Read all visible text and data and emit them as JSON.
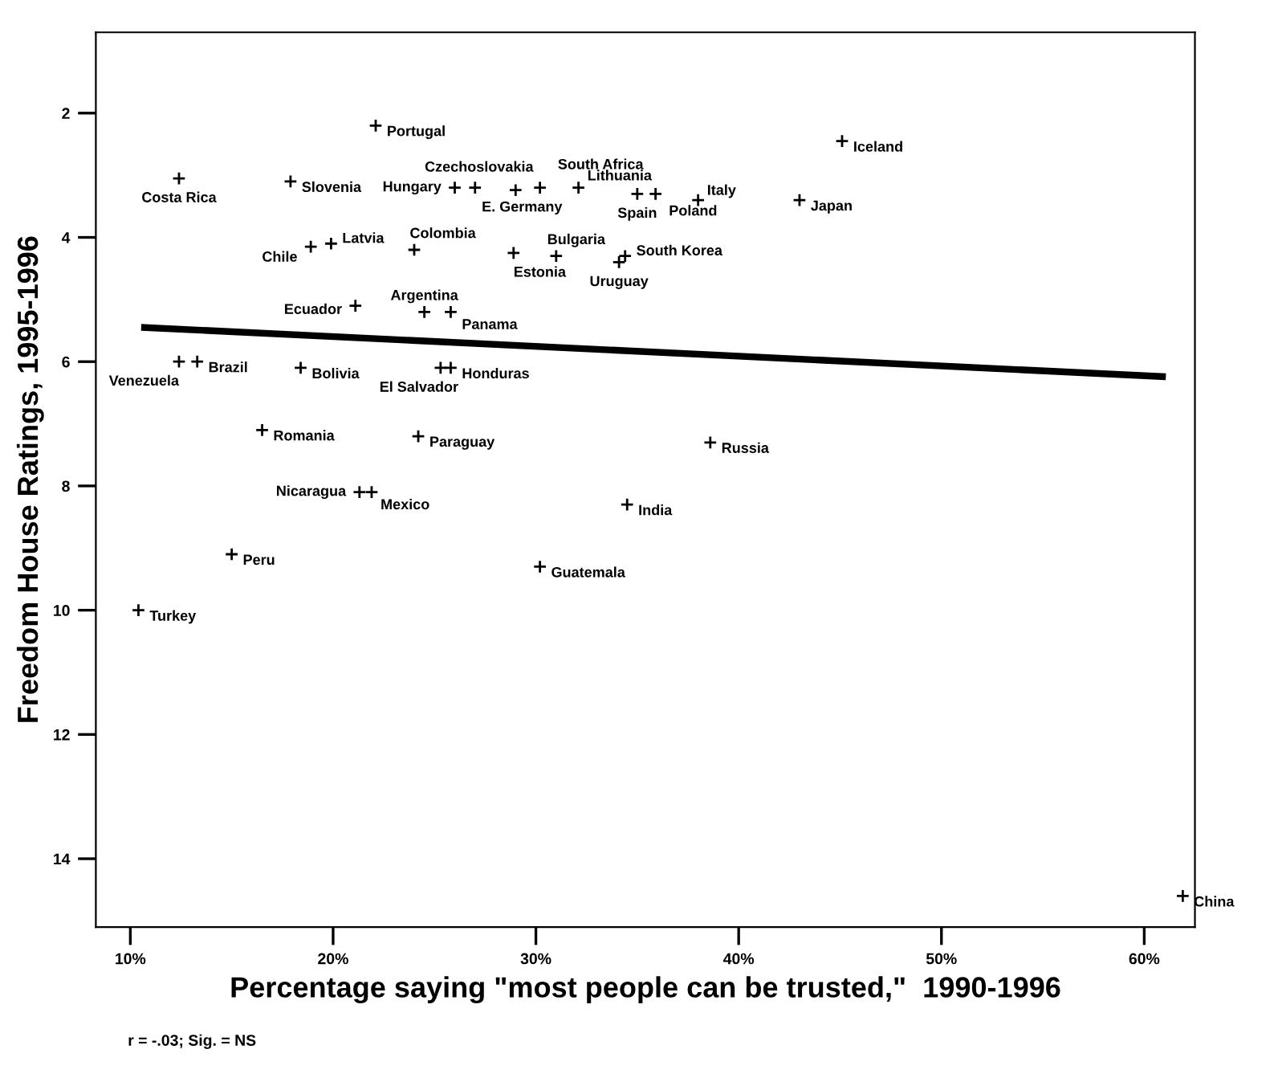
{
  "chart_data": {
    "type": "scatter",
    "xlabel": "Percentage saying \"most people can be trusted,\"  1990-1996",
    "ylabel": "Freedom House Ratings, 1995-1996",
    "annotations": [
      "r = -.03; Sig. = NS"
    ],
    "xlim": [
      8.3,
      62.5
    ],
    "ylim": [
      15.1,
      0.7
    ],
    "xticks": [
      {
        "value": 10,
        "label": "10%"
      },
      {
        "value": 20,
        "label": "20%"
      },
      {
        "value": 30,
        "label": "30%"
      },
      {
        "value": 40,
        "label": "40%"
      },
      {
        "value": 50,
        "label": "50%"
      },
      {
        "value": 60,
        "label": "60%"
      }
    ],
    "yticks": [
      2,
      4,
      6,
      8,
      10,
      12,
      14
    ],
    "grid": false,
    "legend": false,
    "series": [
      {
        "color": "#000000",
        "marker": "cross",
        "x": [
          22.1,
          12.4,
          17.9,
          26.0,
          27.0,
          29.0,
          30.2,
          32.1,
          35.0,
          35.9,
          38.0,
          45.1,
          43.0,
          19.9,
          18.9,
          24.0,
          31.0,
          28.9,
          34.1,
          34.4,
          21.1,
          24.5,
          25.8,
          13.3,
          12.4,
          18.4,
          25.3,
          25.8,
          16.5,
          24.2,
          38.6,
          21.3,
          21.9,
          34.5,
          15.0,
          30.2,
          10.4,
          61.9
        ],
        "values": [
          2.2,
          3.05,
          3.1,
          3.2,
          3.2,
          3.24,
          3.2,
          3.2,
          3.3,
          3.3,
          3.4,
          2.45,
          3.4,
          4.1,
          4.15,
          4.2,
          4.3,
          4.25,
          4.4,
          4.3,
          5.1,
          5.2,
          5.2,
          6.0,
          6.0,
          6.1,
          6.1,
          6.1,
          7.1,
          7.2,
          7.3,
          8.1,
          8.1,
          8.3,
          9.1,
          9.3,
          10.0,
          14.6
        ],
        "value_labels": [
          "Portugal",
          "Costa Rica",
          "Slovenia",
          "Hungary",
          "E. Germany",
          "Czechoslovakia",
          "South Africa",
          "Lithuania",
          "Spain",
          "Poland",
          "Italy",
          "Iceland",
          "Japan",
          "Latvia",
          "Chile",
          "Colombia",
          "Bulgaria",
          "Estonia",
          "Uruguay",
          "South Korea",
          "Ecuador",
          "Argentina",
          "Panama",
          "Brazil",
          "Venezuela",
          "Bolivia",
          "El Salvador",
          "Honduras",
          "Romania",
          "Paraguay",
          "Russia",
          "Nicaragua",
          "Mexico",
          "India",
          "Peru",
          "Guatemala",
          "Turkey",
          "China"
        ]
      },
      {
        "type": "line",
        "color": "#000000",
        "x": [
          10.7,
          60.9
        ],
        "values": [
          5.45,
          6.24
        ]
      }
    ]
  }
}
